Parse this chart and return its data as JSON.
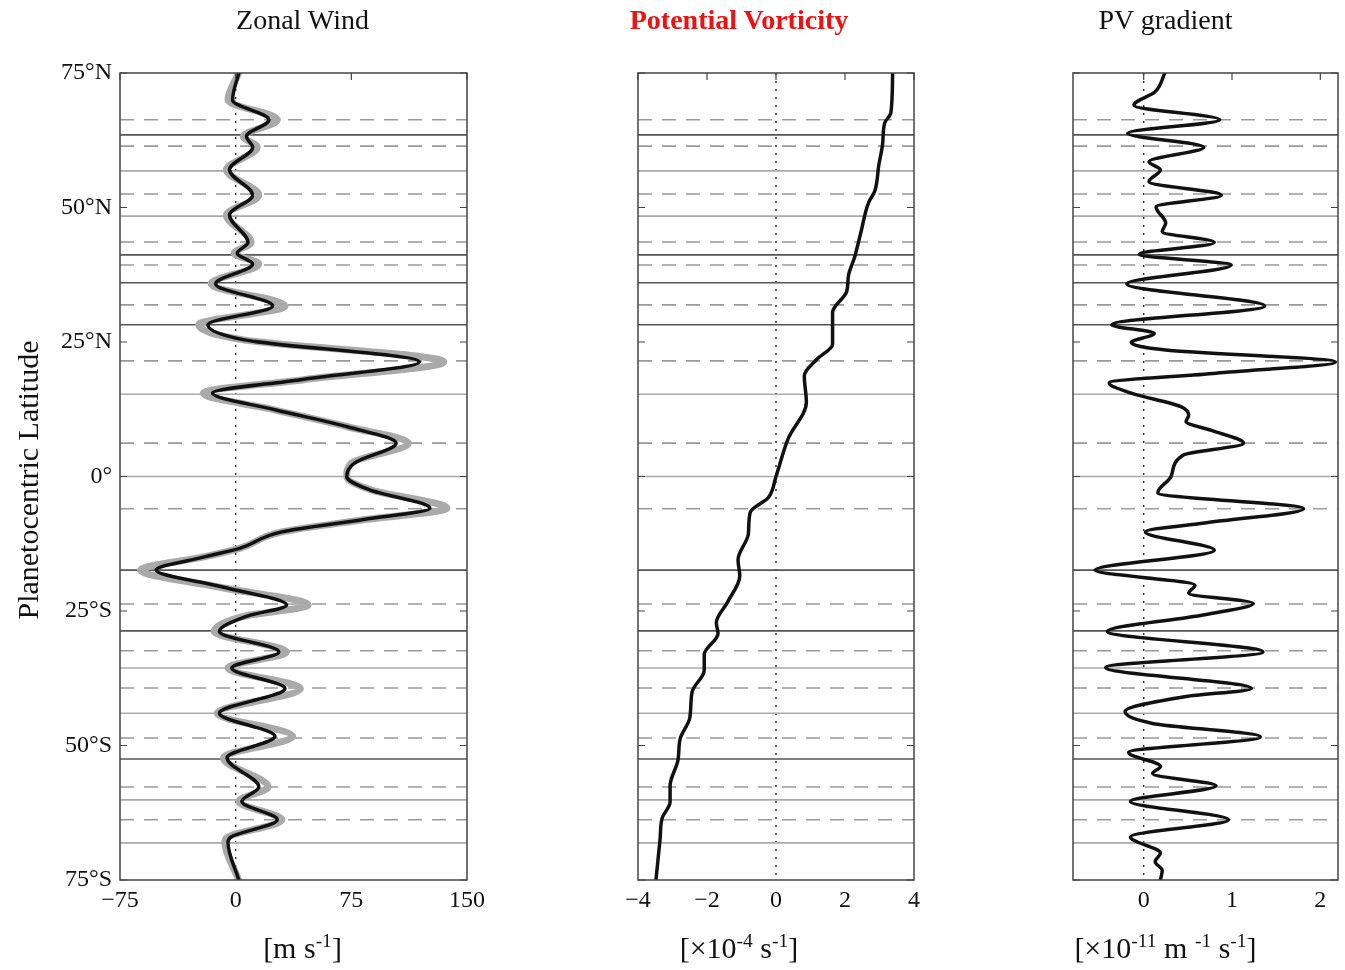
{
  "chart_data": [
    {
      "type": "line",
      "title": "Zonal Wind",
      "xlabel": "[m s$^{-1}$]",
      "ylabel": "Planetocentric Latitude",
      "xlim": [
        -75,
        150
      ],
      "xticks": [
        -75,
        0,
        75,
        150
      ],
      "ylim": [
        -75,
        75
      ],
      "yticks": [
        {
          "value": -75,
          "label": "75°S"
        },
        {
          "value": -50,
          "label": "50°S"
        },
        {
          "value": -25,
          "label": "25°S"
        },
        {
          "value": 0,
          "label": "0°"
        },
        {
          "value": 25,
          "label": "25°N"
        },
        {
          "value": 50,
          "label": "50°N"
        },
        {
          "value": 75,
          "label": "75°N"
        }
      ],
      "series": [
        {
          "color": "#111111",
          "x": [
            2,
            -2,
            21.6,
            7,
            11,
            -4,
            11,
            -4,
            8,
            1,
            11,
            -13,
            24,
            -18,
            5.6,
            119,
            42,
            -15,
            25.5,
            73,
            104,
            77,
            72,
            87,
            126,
            83,
            30,
            3,
            -19.5,
            -51.6,
            -9,
            33,
            7,
            -10.6,
            28,
            -2.5,
            32,
            -10.6,
            25.5,
            -5.6,
            15,
            4,
            27,
            -3,
            -5,
            2
          ],
          "values": [
            75,
            70,
            66.3,
            63.2,
            61.2,
            57,
            52.3,
            48.6,
            43.5,
            41.5,
            39.5,
            35.8,
            31.7,
            28.2,
            25.4,
            21.3,
            18,
            15.5,
            12.4,
            9.2,
            6.2,
            2.5,
            0,
            -2.5,
            -5.9,
            -8,
            -10.3,
            -13.3,
            -14.9,
            -17.4,
            -20.5,
            -23.9,
            -26,
            -28.8,
            -32.6,
            -35.6,
            -39.4,
            -44,
            -48.3,
            -52.3,
            -57.7,
            -60.4,
            -63.8,
            -67,
            -68,
            -75
          ]
        },
        {
          "color": "#aaaaaa",
          "x": [
            2,
            -5,
            27,
            5,
            14,
            -6,
            15,
            -6,
            10,
            -1,
            15,
            -16,
            32,
            -24,
            5,
            135,
            44,
            -21,
            25,
            73,
            112,
            75,
            72,
            88,
            137,
            84,
            30,
            3,
            -20,
            -61.6,
            -12,
            47,
            5,
            -14,
            33,
            -5,
            42,
            -12,
            37,
            -8,
            21,
            2,
            30,
            -5,
            -7,
            2
          ],
          "values": [
            75,
            70,
            66.3,
            63.2,
            61.2,
            57,
            52.3,
            48.6,
            43.5,
            41.5,
            39.5,
            35.8,
            31.7,
            28.2,
            25.4,
            21.3,
            18,
            15.5,
            12.4,
            9.2,
            6.2,
            2.5,
            0,
            -2.5,
            -5.9,
            -8,
            -10.3,
            -13.3,
            -14.9,
            -17.4,
            -20.5,
            -23.9,
            -26,
            -28.8,
            -32.6,
            -35.6,
            -39.4,
            -44,
            -48.3,
            -52.3,
            -57.7,
            -60.4,
            -63.8,
            -67,
            -68,
            -75
          ]
        }
      ],
      "ref_lines": [
        {
          "axis": "x",
          "value": 0,
          "line_style": "dotted",
          "color": "#333333"
        },
        {
          "axis": "y",
          "value": 66.3,
          "line_style": "dashed",
          "color": "#999999"
        },
        {
          "axis": "y",
          "value": 61.4,
          "line_style": "dashed",
          "color": "#999999"
        },
        {
          "axis": "y",
          "value": 52.5,
          "line_style": "dashed",
          "color": "#999999"
        },
        {
          "axis": "y",
          "value": 43.6,
          "line_style": "dashed",
          "color": "#999999"
        },
        {
          "axis": "y",
          "value": 39.3,
          "line_style": "dashed",
          "color": "#999999"
        },
        {
          "axis": "y",
          "value": 31.9,
          "line_style": "dashed",
          "color": "#999999"
        },
        {
          "axis": "y",
          "value": 21.5,
          "line_style": "dashed",
          "color": "#999999"
        },
        {
          "axis": "y",
          "value": 6.2,
          "line_style": "dashed",
          "color": "#999999"
        },
        {
          "axis": "y",
          "value": -6,
          "line_style": "dashed",
          "color": "#999999"
        },
        {
          "axis": "y",
          "value": -23.7,
          "line_style": "dashed",
          "color": "#999999"
        },
        {
          "axis": "y",
          "value": -32.4,
          "line_style": "dashed",
          "color": "#999999"
        },
        {
          "axis": "y",
          "value": -39.3,
          "line_style": "dashed",
          "color": "#999999"
        },
        {
          "axis": "y",
          "value": -48.6,
          "line_style": "dashed",
          "color": "#999999"
        },
        {
          "axis": "y",
          "value": -57.7,
          "line_style": "dashed",
          "color": "#999999"
        },
        {
          "axis": "y",
          "value": -63.8,
          "line_style": "dashed",
          "color": "#999999"
        },
        {
          "axis": "y",
          "value": 63.5,
          "line_style": "solid",
          "color": "#555555"
        },
        {
          "axis": "y",
          "value": 41.2,
          "line_style": "solid",
          "color": "#555555"
        },
        {
          "axis": "y",
          "value": 36,
          "line_style": "solid",
          "color": "#555555"
        },
        {
          "axis": "y",
          "value": 28.2,
          "line_style": "solid",
          "color": "#555555"
        },
        {
          "axis": "y",
          "value": -17.4,
          "line_style": "solid",
          "color": "#555555"
        },
        {
          "axis": "y",
          "value": -28.7,
          "line_style": "solid",
          "color": "#555555"
        },
        {
          "axis": "y",
          "value": -52.5,
          "line_style": "solid",
          "color": "#555555"
        },
        {
          "axis": "y",
          "value": 56.8,
          "line_style": "solid",
          "color": "#aaaaaa"
        },
        {
          "axis": "y",
          "value": 48.4,
          "line_style": "solid",
          "color": "#aaaaaa"
        },
        {
          "axis": "y",
          "value": 15.3,
          "line_style": "solid",
          "color": "#aaaaaa"
        },
        {
          "axis": "y",
          "value": 0,
          "line_style": "solid",
          "color": "#aaaaaa"
        },
        {
          "axis": "y",
          "value": -35.6,
          "line_style": "solid",
          "color": "#aaaaaa"
        },
        {
          "axis": "y",
          "value": -44,
          "line_style": "solid",
          "color": "#aaaaaa"
        },
        {
          "axis": "y",
          "value": -60.1,
          "line_style": "solid",
          "color": "#aaaaaa"
        },
        {
          "axis": "y",
          "value": -68.1,
          "line_style": "solid",
          "color": "#aaaaaa"
        }
      ]
    },
    {
      "type": "line",
      "title": "Potential Vorticity",
      "xlabel": "[×10$^{-4}$ s$^{-1}$]",
      "xlim": [
        -4,
        4
      ],
      "xticks": [
        -4,
        -2,
        0,
        2,
        4
      ],
      "ylim": [
        -75,
        75
      ],
      "tick_labels": "x",
      "yticks": [
        {
          "value": -75,
          "label": null
        },
        {
          "value": -50,
          "label": null
        },
        {
          "value": -25,
          "label": null
        },
        {
          "value": 0,
          "label": null
        },
        {
          "value": 25,
          "label": null
        },
        {
          "value": 50,
          "label": null
        },
        {
          "value": 75,
          "label": null
        }
      ],
      "series": [
        {
          "color": "#111111",
          "x": [
            3.38,
            3.33,
            3.15,
            3.09,
            2.98,
            2.86,
            2.69,
            2.45,
            2.28,
            2.1,
            2.05,
            1.64,
            1.64,
            1.17,
            0.82,
            0.88,
            0.35,
            0,
            -0.22,
            -0.75,
            -0.8,
            -1.1,
            -1.05,
            -1.4,
            -1.73,
            -1.68,
            -2.08,
            -2.08,
            -2.43,
            -2.5,
            -2.78,
            -2.84,
            -3.07,
            -3.07,
            -3.3,
            -3.36,
            -3.48
          ],
          "values": [
            75,
            67.6,
            65.7,
            61.8,
            57.9,
            53,
            51,
            45.1,
            40.8,
            37.3,
            34.4,
            30.5,
            24.6,
            21.7,
            18.7,
            13.8,
            7,
            0,
            -3.9,
            -6.7,
            -10.6,
            -15.5,
            -18.5,
            -23.3,
            -27.2,
            -29.2,
            -33.1,
            -36,
            -40,
            -44.9,
            -48.8,
            -52.7,
            -57.5,
            -60.5,
            -63.5,
            -67.4,
            -75
          ]
        }
      ],
      "ref_lines": [
        {
          "axis": "x",
          "value": 0,
          "line_style": "dotted",
          "color": "#333333"
        },
        {
          "axis": "y",
          "value": 66.3,
          "line_style": "dashed",
          "color": "#999999"
        },
        {
          "axis": "y",
          "value": 61.4,
          "line_style": "dashed",
          "color": "#999999"
        },
        {
          "axis": "y",
          "value": 52.5,
          "line_style": "dashed",
          "color": "#999999"
        },
        {
          "axis": "y",
          "value": 43.6,
          "line_style": "dashed",
          "color": "#999999"
        },
        {
          "axis": "y",
          "value": 39.3,
          "line_style": "dashed",
          "color": "#999999"
        },
        {
          "axis": "y",
          "value": 31.9,
          "line_style": "dashed",
          "color": "#999999"
        },
        {
          "axis": "y",
          "value": 21.5,
          "line_style": "dashed",
          "color": "#999999"
        },
        {
          "axis": "y",
          "value": 6.2,
          "line_style": "dashed",
          "color": "#999999"
        },
        {
          "axis": "y",
          "value": -6,
          "line_style": "dashed",
          "color": "#999999"
        },
        {
          "axis": "y",
          "value": -23.7,
          "line_style": "dashed",
          "color": "#999999"
        },
        {
          "axis": "y",
          "value": -32.4,
          "line_style": "dashed",
          "color": "#999999"
        },
        {
          "axis": "y",
          "value": -39.3,
          "line_style": "dashed",
          "color": "#999999"
        },
        {
          "axis": "y",
          "value": -48.6,
          "line_style": "dashed",
          "color": "#999999"
        },
        {
          "axis": "y",
          "value": -57.7,
          "line_style": "dashed",
          "color": "#999999"
        },
        {
          "axis": "y",
          "value": -63.8,
          "line_style": "dashed",
          "color": "#999999"
        },
        {
          "axis": "y",
          "value": 63.5,
          "line_style": "solid",
          "color": "#555555"
        },
        {
          "axis": "y",
          "value": 41.2,
          "line_style": "solid",
          "color": "#555555"
        },
        {
          "axis": "y",
          "value": 36,
          "line_style": "solid",
          "color": "#555555"
        },
        {
          "axis": "y",
          "value": 28.2,
          "line_style": "solid",
          "color": "#555555"
        },
        {
          "axis": "y",
          "value": -17.4,
          "line_style": "solid",
          "color": "#555555"
        },
        {
          "axis": "y",
          "value": -28.7,
          "line_style": "solid",
          "color": "#555555"
        },
        {
          "axis": "y",
          "value": -52.5,
          "line_style": "solid",
          "color": "#555555"
        },
        {
          "axis": "y",
          "value": 56.8,
          "line_style": "solid",
          "color": "#aaaaaa"
        },
        {
          "axis": "y",
          "value": 48.4,
          "line_style": "solid",
          "color": "#aaaaaa"
        },
        {
          "axis": "y",
          "value": 15.3,
          "line_style": "solid",
          "color": "#aaaaaa"
        },
        {
          "axis": "y",
          "value": 0,
          "line_style": "solid",
          "color": "#aaaaaa"
        },
        {
          "axis": "y",
          "value": -35.6,
          "line_style": "solid",
          "color": "#aaaaaa"
        },
        {
          "axis": "y",
          "value": -44,
          "line_style": "solid",
          "color": "#aaaaaa"
        },
        {
          "axis": "y",
          "value": -60.1,
          "line_style": "solid",
          "color": "#aaaaaa"
        },
        {
          "axis": "y",
          "value": -68.1,
          "line_style": "solid",
          "color": "#aaaaaa"
        }
      ]
    },
    {
      "type": "line",
      "title": "PV gradient",
      "xlabel": "[×10$^{-11}$ m $^{-1}$ s$^{-1}$]",
      "xlim": [
        -0.8,
        2.2
      ],
      "xticks": [
        0,
        1,
        2
      ],
      "ylim": [
        -75,
        75
      ],
      "tick_labels": "x",
      "yticks": [
        {
          "value": -75,
          "label": null
        },
        {
          "value": -50,
          "label": null
        },
        {
          "value": -25,
          "label": null
        },
        {
          "value": 0,
          "label": null
        },
        {
          "value": 25,
          "label": null
        },
        {
          "value": 50,
          "label": null
        },
        {
          "value": 75,
          "label": null
        }
      ],
      "series": [
        {
          "color": "#111111",
          "x": [
            0.24,
            0.13,
            -0.11,
            0.86,
            -0.18,
            0.68,
            0.06,
            0.19,
            0.06,
            0.88,
            0.14,
            0.25,
            0.21,
            0.8,
            -0.05,
            0.99,
            -0.19,
            1.37,
            -0.36,
            0.12,
            -0.14,
            0.25,
            2.17,
            0.82,
            -0.39,
            -0.14,
            0.42,
            0.51,
            0.48,
            0.76,
            1.13,
            0.45,
            0.31,
            0.16,
            1.81,
            0.71,
            0.02,
            0.8,
            -0.55,
            0.58,
            0.51,
            1.24,
            0.69,
            -0.41,
            1.35,
            -0.43,
            1.22,
            0.48,
            -0.21,
            0.1,
            1.32,
            -0.17,
            0.19,
            0.1,
            0.82,
            -0.15,
            0.96,
            -0.15,
            0.19,
            0.13,
            0.21,
            0.19
          ],
          "values": [
            75,
            71.5,
            69,
            66.3,
            63.8,
            61.2,
            58.5,
            57,
            54.8,
            52.3,
            50.1,
            47.1,
            45.5,
            43.5,
            41.3,
            39.3,
            35.8,
            31.7,
            28.2,
            26.6,
            24.9,
            23.5,
            21.3,
            19.2,
            17.4,
            15.5,
            13,
            11.4,
            10.2,
            8.6,
            6.2,
            4,
            0,
            -3,
            -6,
            -8.6,
            -10.3,
            -13.7,
            -17.4,
            -20.2,
            -21.7,
            -23.6,
            -25.7,
            -28.8,
            -32.6,
            -35.5,
            -39.4,
            -40.9,
            -43.7,
            -45.9,
            -48.4,
            -51.3,
            -53.9,
            -55.2,
            -57.5,
            -60.4,
            -63.8,
            -67,
            -70,
            -71.6,
            -73.2,
            -75
          ]
        }
      ],
      "ref_lines": [
        {
          "axis": "x",
          "value": 0,
          "line_style": "dotted",
          "color": "#333333"
        },
        {
          "axis": "y",
          "value": 66.3,
          "line_style": "dashed",
          "color": "#999999"
        },
        {
          "axis": "y",
          "value": 61.4,
          "line_style": "dashed",
          "color": "#999999"
        },
        {
          "axis": "y",
          "value": 52.5,
          "line_style": "dashed",
          "color": "#999999"
        },
        {
          "axis": "y",
          "value": 43.6,
          "line_style": "dashed",
          "color": "#999999"
        },
        {
          "axis": "y",
          "value": 39.3,
          "line_style": "dashed",
          "color": "#999999"
        },
        {
          "axis": "y",
          "value": 31.9,
          "line_style": "dashed",
          "color": "#999999"
        },
        {
          "axis": "y",
          "value": 21.5,
          "line_style": "dashed",
          "color": "#999999"
        },
        {
          "axis": "y",
          "value": 6.2,
          "line_style": "dashed",
          "color": "#999999"
        },
        {
          "axis": "y",
          "value": -6,
          "line_style": "dashed",
          "color": "#999999"
        },
        {
          "axis": "y",
          "value": -23.7,
          "line_style": "dashed",
          "color": "#999999"
        },
        {
          "axis": "y",
          "value": -32.4,
          "line_style": "dashed",
          "color": "#999999"
        },
        {
          "axis": "y",
          "value": -39.3,
          "line_style": "dashed",
          "color": "#999999"
        },
        {
          "axis": "y",
          "value": -48.6,
          "line_style": "dashed",
          "color": "#999999"
        },
        {
          "axis": "y",
          "value": -57.7,
          "line_style": "dashed",
          "color": "#999999"
        },
        {
          "axis": "y",
          "value": -63.8,
          "line_style": "dashed",
          "color": "#999999"
        },
        {
          "axis": "y",
          "value": 63.5,
          "line_style": "solid",
          "color": "#555555"
        },
        {
          "axis": "y",
          "value": 41.2,
          "line_style": "solid",
          "color": "#555555"
        },
        {
          "axis": "y",
          "value": 36,
          "line_style": "solid",
          "color": "#555555"
        },
        {
          "axis": "y",
          "value": 28.2,
          "line_style": "solid",
          "color": "#555555"
        },
        {
          "axis": "y",
          "value": -17.4,
          "line_style": "solid",
          "color": "#555555"
        },
        {
          "axis": "y",
          "value": -28.7,
          "line_style": "solid",
          "color": "#555555"
        },
        {
          "axis": "y",
          "value": -52.5,
          "line_style": "solid",
          "color": "#555555"
        },
        {
          "axis": "y",
          "value": 56.8,
          "line_style": "solid",
          "color": "#aaaaaa"
        },
        {
          "axis": "y",
          "value": 48.4,
          "line_style": "solid",
          "color": "#aaaaaa"
        },
        {
          "axis": "y",
          "value": 15.3,
          "line_style": "solid",
          "color": "#aaaaaa"
        },
        {
          "axis": "y",
          "value": 0,
          "line_style": "solid",
          "color": "#aaaaaa"
        },
        {
          "axis": "y",
          "value": -35.6,
          "line_style": "solid",
          "color": "#aaaaaa"
        },
        {
          "axis": "y",
          "value": -44,
          "line_style": "solid",
          "color": "#aaaaaa"
        },
        {
          "axis": "y",
          "value": -60.1,
          "line_style": "solid",
          "color": "#aaaaaa"
        },
        {
          "axis": "y",
          "value": -68.1,
          "line_style": "solid",
          "color": "#aaaaaa"
        }
      ]
    }
  ]
}
